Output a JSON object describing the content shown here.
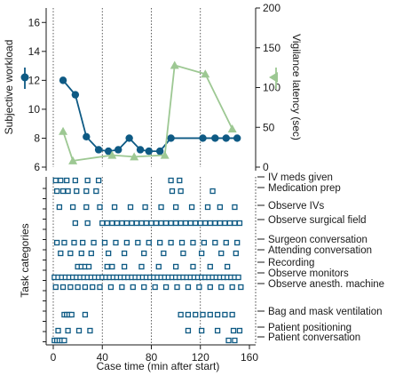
{
  "chart_data": [
    {
      "type": "line",
      "ylabel": "Subjective workload",
      "y2label": "Vigilance latency (sec)",
      "xlim": [
        0,
        160
      ],
      "ylim": [
        6,
        17
      ],
      "y2lim": [
        0,
        200
      ],
      "yticks": [
        6,
        8,
        10,
        12,
        14,
        16
      ],
      "y2ticks": [
        0,
        50,
        100,
        150,
        200
      ],
      "series": [
        {
          "axis": "left",
          "marker": "circle",
          "color": "#0e5a84",
          "x": [
            8,
            18,
            27,
            37,
            45,
            53,
            62,
            71,
            78,
            87,
            96,
            122,
            132,
            141,
            150
          ],
          "y": [
            12,
            11,
            8.1,
            7.2,
            7.1,
            7.2,
            8.0,
            7.2,
            7.1,
            7.1,
            8.0,
            8.0,
            8.0,
            8.0,
            8.0
          ]
        },
        {
          "axis": "right",
          "marker": "triangle",
          "color": "#9dc893",
          "x": [
            8,
            16,
            48,
            66,
            91,
            99,
            124,
            146
          ],
          "y": [
            45,
            8,
            15,
            13,
            15,
            128,
            117,
            48
          ]
        }
      ],
      "gridlines_x": [
        40,
        80,
        120
      ]
    },
    {
      "type": "scatter",
      "xlabel": "Case time (min after start)",
      "ylabel": "Task categories",
      "xlim": [
        0,
        160
      ],
      "xticks": [
        0,
        40,
        80,
        120,
        160
      ],
      "categories": [
        "IV meds given",
        "Medication prep",
        "Observe IVs",
        "Observe surgical field",
        "Surgeon conversation",
        "Attending conversation",
        "Recording",
        "Observe monitors",
        "Observe anesth. machine",
        "Bag and mask ventilation",
        "Patient positioning",
        "Patient conversation"
      ],
      "events": {
        "IV meds given": [
          2,
          6,
          11,
          18,
          28,
          37,
          96,
          103
        ],
        "Medication prep": [
          3,
          8,
          12,
          19,
          27,
          35,
          97,
          104,
          130
        ],
        "Observe IVs": [
          5,
          16,
          27,
          38,
          50,
          63,
          75,
          88,
          100,
          113,
          126,
          136,
          148
        ],
        "Observe surgical field": [
          18,
          28,
          40,
          44,
          48,
          52,
          56,
          60,
          64,
          68,
          72,
          76,
          80,
          84,
          88,
          92,
          96,
          100,
          104,
          108,
          112,
          116,
          120,
          124,
          128,
          132,
          136,
          140,
          144,
          148,
          152
        ],
        "Surgeon conversation": [
          3,
          9,
          17,
          24,
          33,
          42,
          51,
          60,
          69,
          78,
          87,
          96,
          105,
          114,
          123,
          132,
          141,
          150
        ],
        "Attending conversation": [
          6,
          14,
          23,
          31,
          45,
          58,
          74,
          90,
          106,
          121,
          137,
          149
        ],
        "Recording": [
          20,
          23,
          26,
          29,
          44,
          48,
          58,
          72,
          86,
          100,
          114,
          128,
          142
        ],
        "Observe monitors": [
          1,
          4,
          7,
          10,
          13,
          16,
          19,
          22,
          25,
          28,
          31,
          34,
          37,
          40,
          43,
          46,
          49,
          52,
          55,
          58,
          61,
          64,
          67,
          70,
          73,
          76,
          79,
          82,
          85,
          88,
          91,
          94,
          97,
          100,
          103,
          106,
          109,
          112,
          115,
          118,
          121,
          124,
          127,
          130,
          133,
          136,
          139,
          142,
          145,
          148,
          151
        ],
        "Observe anesth. machine": [
          2,
          8,
          14,
          20,
          26,
          32,
          38,
          47,
          56,
          65,
          74,
          83,
          92,
          101,
          110,
          119,
          128,
          137,
          146,
          153
        ],
        "Bag and mask ventilation": [
          9,
          11,
          13,
          15,
          26,
          104,
          110,
          116,
          122,
          128,
          134,
          140,
          146
        ],
        "Patient positioning": [
          4,
          12,
          21,
          30,
          110,
          121,
          134,
          147,
          152
        ],
        "Patient conversation": [
          1,
          3,
          5,
          7,
          9,
          143,
          148
        ]
      },
      "gridlines_x": [
        40,
        80,
        120
      ]
    }
  ]
}
